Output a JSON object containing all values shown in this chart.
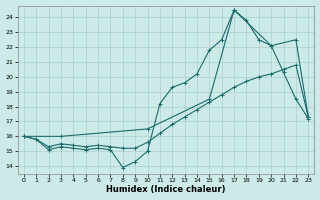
{
  "title": "",
  "xlabel": "Humidex (Indice chaleur)",
  "ylabel": "",
  "bg_color": "#cceae8",
  "line_color": "#1a6b6b",
  "grid_color": "#aacece",
  "xlim": [
    -0.5,
    23.5
  ],
  "ylim": [
    13.5,
    24.8
  ],
  "yticks": [
    14,
    15,
    16,
    17,
    18,
    19,
    20,
    21,
    22,
    23,
    24
  ],
  "xticks": [
    0,
    1,
    2,
    3,
    4,
    5,
    6,
    7,
    8,
    9,
    10,
    11,
    12,
    13,
    14,
    15,
    16,
    17,
    18,
    19,
    20,
    21,
    22,
    23
  ],
  "line1_x": [
    0,
    1,
    2,
    3,
    4,
    5,
    6,
    7,
    8,
    9,
    10,
    11,
    12,
    13,
    14,
    15,
    16,
    17,
    18,
    19,
    20,
    21,
    22,
    23
  ],
  "line1_y": [
    16.0,
    15.8,
    15.1,
    15.3,
    15.2,
    15.1,
    15.2,
    15.1,
    13.9,
    14.3,
    15.0,
    18.2,
    19.3,
    19.6,
    20.2,
    21.8,
    22.5,
    24.5,
    23.8,
    22.5,
    22.1,
    20.3,
    18.5,
    17.2
  ],
  "line2_x": [
    0,
    1,
    2,
    3,
    4,
    5,
    6,
    7,
    8,
    9,
    10,
    11,
    12,
    13,
    14,
    15,
    16,
    17,
    18,
    19,
    20,
    21,
    22,
    23
  ],
  "line2_y": [
    16.0,
    15.8,
    15.3,
    15.5,
    15.4,
    15.3,
    15.4,
    15.3,
    15.2,
    15.2,
    15.6,
    16.2,
    16.8,
    17.3,
    17.8,
    18.3,
    18.8,
    19.3,
    19.7,
    20.0,
    20.2,
    20.5,
    20.8,
    17.3
  ],
  "line3_x": [
    0,
    3,
    10,
    15,
    17,
    20,
    22,
    23
  ],
  "line3_y": [
    16.0,
    16.0,
    16.5,
    18.5,
    24.5,
    22.1,
    22.5,
    17.3
  ]
}
